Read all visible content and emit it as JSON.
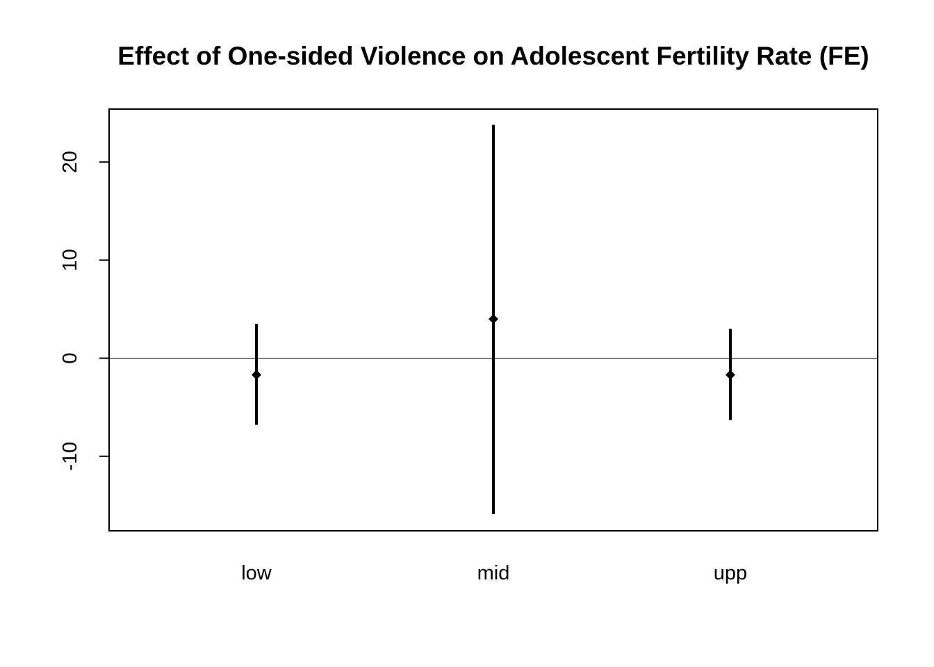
{
  "chart_data": {
    "type": "errorbar",
    "title": "Effect of One-sided Violence on Adolescent Fertility Rate (FE)",
    "xlabel": "",
    "ylabel": "",
    "categories": [
      "low",
      "mid",
      "upp"
    ],
    "estimates": [
      -1.7,
      4.0,
      -1.7
    ],
    "lower": [
      -6.8,
      -15.9,
      -6.3
    ],
    "upper": [
      3.5,
      23.8,
      3.0
    ],
    "ylim": [
      -17.6,
      25.4
    ],
    "yticks": [
      -10,
      0,
      10,
      20
    ],
    "ytick_labels": [
      "-10",
      "0",
      "10",
      "20"
    ],
    "reference_line": 0,
    "grid": false,
    "legend": "none",
    "colors": {
      "marks": "#000000",
      "axis": "#000000",
      "background": "#ffffff"
    }
  }
}
